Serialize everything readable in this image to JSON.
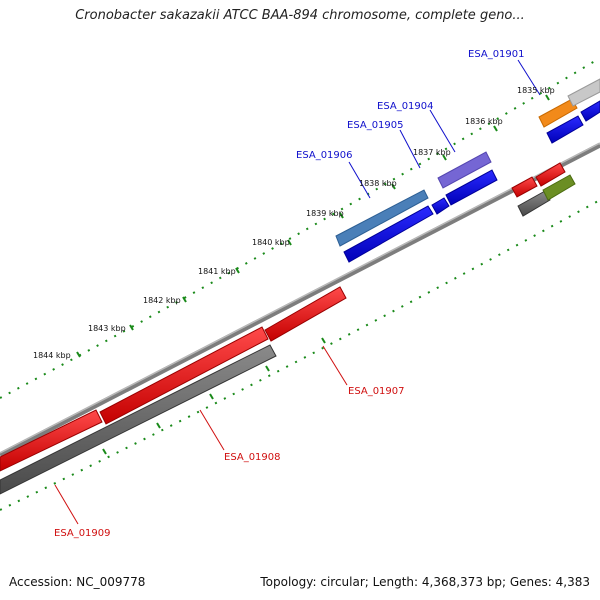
{
  "title": "Cronobacter sakazakii ATCC BAA-894 chromosome, complete geno...",
  "accession": "Accession: NC_009778",
  "summary": "Topology: circular; Length: 4,368,373 bp; Genes: 4,383",
  "scale_labels": [
    "1835 kbp",
    "1836 kbp",
    "1837 kbp",
    "1838 kbp",
    "1839 kbp",
    "1840 kbp",
    "1841 kbp",
    "1842 kbp",
    "1843 kbp",
    "1844 kbp"
  ],
  "gene_labels": [
    "ESA_01901",
    "ESA_01904",
    "ESA_01905",
    "ESA_01906",
    "ESA_01907",
    "ESA_01908",
    "ESA_01909"
  ],
  "colors": {
    "forward_gene": "#0000ee",
    "reverse_gene": "#ee1111",
    "backbone": "#888888",
    "tick": "#1a8a1a",
    "label_blue": "#1010cc",
    "label_red": "#d01010"
  }
}
